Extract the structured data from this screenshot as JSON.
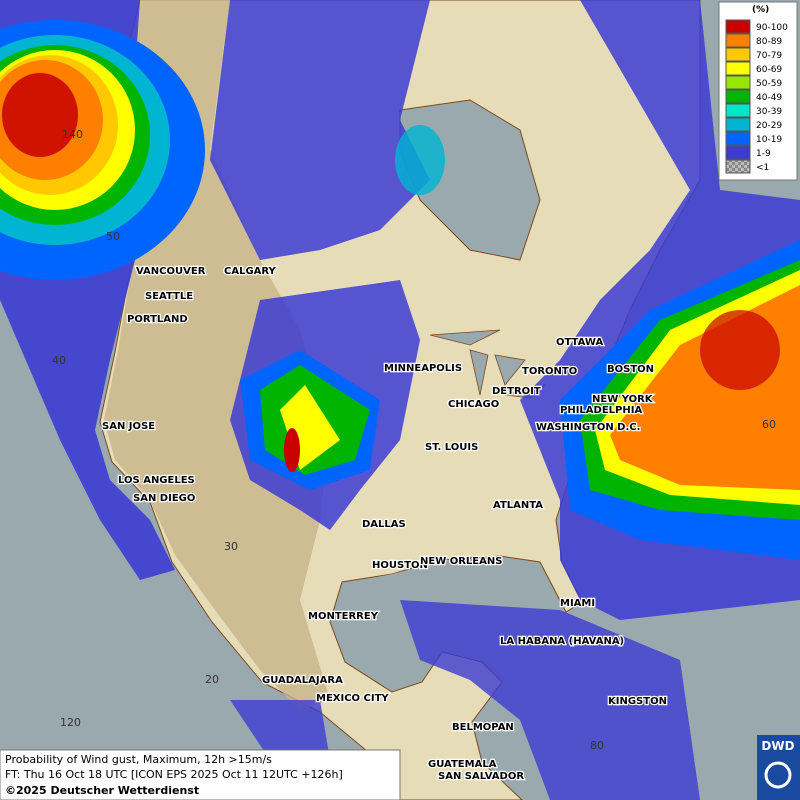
{
  "legend": {
    "title": "(%)",
    "items": [
      {
        "label": "90-100",
        "color": "#c80000"
      },
      {
        "label": "80-89",
        "color": "#ff8000"
      },
      {
        "label": "70-79",
        "color": "#ffc800"
      },
      {
        "label": "60-69",
        "color": "#ffff00"
      },
      {
        "label": "50-59",
        "color": "#96e600"
      },
      {
        "label": "40-49",
        "color": "#00b400"
      },
      {
        "label": "30-39",
        "color": "#00e6c8"
      },
      {
        "label": "20-29",
        "color": "#00b4d2"
      },
      {
        "label": "10-19",
        "color": "#0064ff"
      },
      {
        "label": "1-9",
        "color": "#3c3cd2"
      },
      {
        "label": "<1",
        "color": "checker"
      }
    ]
  },
  "cities": [
    "VANCOUVER",
    "CALGARY",
    "SEATTLE",
    "PORTLAND",
    "MINNEAPOLIS",
    "OTTAWA",
    "TORONTO",
    "BOSTON",
    "DETROIT",
    "CHICAGO",
    "NEW YORK",
    "PHILADELPHIA",
    "WASHINGTON D.C.",
    "SAN JOSE",
    "ST. LOUIS",
    "LOS ANGELES",
    "SAN DIEGO",
    "DALLAS",
    "ATLANTA",
    "HOUSTON",
    "NEW ORLEANS",
    "MIAMI",
    "MONTERREY",
    "LA HABANA (HAVANA)",
    "GUADALAJARA",
    "MEXICO CITY",
    "KINGSTON",
    "BELMOPAN",
    "GUATEMALA",
    "SAN SALVADOR"
  ],
  "grid_labels": [
    "140",
    "50",
    "40",
    "60",
    "30",
    "20",
    "120",
    "80"
  ],
  "footer": {
    "lines": [
      "Probability of Wind gust, Maximum, 12h >15m/s",
      "FT: Thu 16 Oct 18 UTC [ICON EPS 2025 Oct 11 12UTC +126h]",
      "©2025 Deutscher Wetterdienst"
    ]
  },
  "logo": "DWD"
}
